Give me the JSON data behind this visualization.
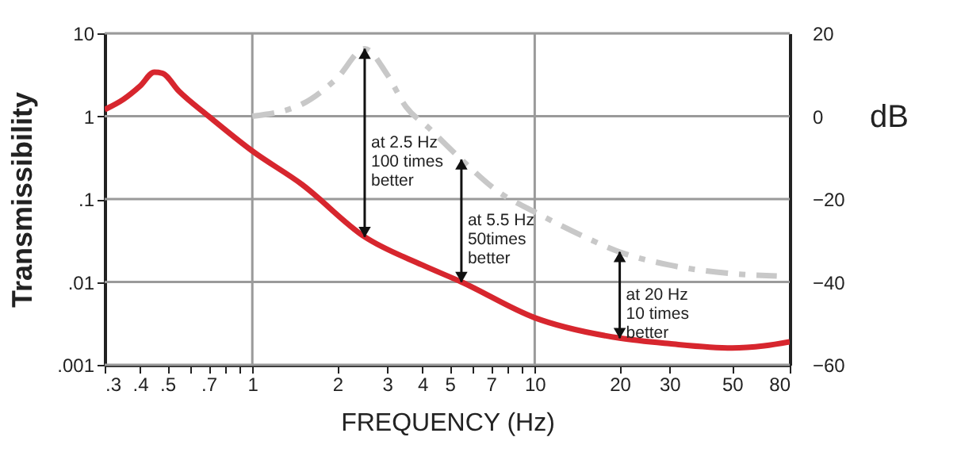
{
  "chart_data": {
    "type": "line",
    "xlabel": "FREQUENCY (Hz)",
    "ylabel": "Transmissibility",
    "y2label": "dB",
    "log": "xy",
    "grid": true,
    "marker": "none",
    "xlim": [
      0.3,
      80
    ],
    "xticks": [
      {
        "value": 0.3,
        "label": ".3"
      },
      {
        "value": 0.4,
        "label": ".4"
      },
      {
        "value": 0.5,
        "label": ".5"
      },
      {
        "value": 0.6,
        "label": null
      },
      {
        "value": 0.7,
        "label": ".7"
      },
      {
        "value": 0.8,
        "label": null
      },
      {
        "value": 0.9,
        "label": null
      },
      1,
      2,
      3,
      4,
      5,
      {
        "value": 6,
        "label": null
      },
      7,
      {
        "value": 8,
        "label": null
      },
      {
        "value": 9,
        "label": null
      },
      10,
      20,
      30,
      50,
      80
    ],
    "ylim": [
      0.001,
      10
    ],
    "yticks": [
      {
        "value": 0.001,
        "label": ".001"
      },
      {
        "value": 0.01,
        "label": ".01"
      },
      {
        "value": 0.1,
        "label": ".1"
      },
      1,
      10
    ],
    "y2lim": [
      -60,
      20
    ],
    "y2ticks": [
      -60,
      -40,
      -20,
      0,
      20
    ],
    "series": [
      {
        "color": "#d7262e",
        "line_style": "solid",
        "x": [
          0.3,
          0.35,
          0.4,
          0.45,
          0.48,
          0.55,
          0.7,
          1,
          1.5,
          2.5,
          4,
          5.5,
          10,
          20,
          30,
          50,
          65,
          80
        ],
        "values": [
          1.2,
          1.6,
          2.3,
          3.4,
          3.3,
          2.0,
          1.0,
          0.38,
          0.15,
          0.035,
          0.016,
          0.01,
          0.0037,
          0.0021,
          0.0018,
          0.0016,
          0.0017,
          0.0019
        ]
      },
      {
        "color": "#c8c8c8",
        "line_style": "dashed",
        "x": [
          1,
          1.5,
          2,
          2.5,
          3,
          3.5,
          4.2,
          5.5,
          7.5,
          10,
          15,
          20,
          30,
          50,
          72
        ],
        "values": [
          1,
          1.4,
          2.9,
          6.5,
          3.2,
          1.3,
          0.73,
          0.3,
          0.12,
          0.07,
          0.035,
          0.023,
          0.016,
          0.0126,
          0.0118
        ]
      }
    ],
    "annotations": [
      {
        "text": "at 2.5 Hz\n100 times\nbetter",
        "x": 2.5,
        "y": 0.035
      },
      {
        "text": "at 5.5 Hz\n50times\nbetter",
        "x": 5.5,
        "y": 0.01
      },
      {
        "text": "at 20 Hz\n10 times\nbetter",
        "x": 20,
        "y": 0.0021
      }
    ]
  }
}
